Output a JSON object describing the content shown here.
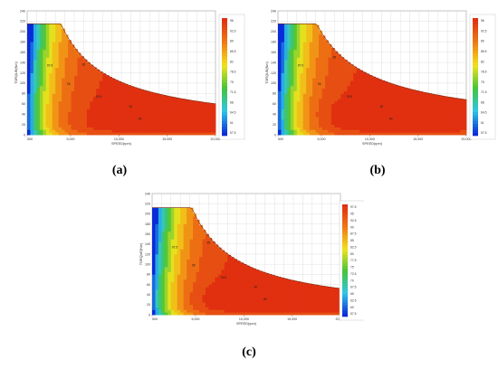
{
  "figure": {
    "panels": [
      {
        "caption": "(a)",
        "chart_data": {
          "type": "heatmap",
          "xlabel": "SPEED(rpm)",
          "ylabel": "TORQUE(Nm)",
          "xlim": [
            500,
            20000
          ],
          "ylim": [
            0,
            240
          ],
          "x_ticks": [
            "500",
            "5,000",
            "10,000",
            "15,000",
            "20,000"
          ],
          "y_ticks": [
            "0",
            "20",
            "40",
            "60",
            "80",
            "100",
            "120",
            "140",
            "160",
            "180",
            "200",
            "220",
            "240"
          ],
          "max_torque": 215,
          "corner_speed": 4000,
          "end_torque": 60,
          "colorbar_ticks": [
            "96",
            "92.5",
            "89",
            "85.5",
            "82",
            "78.5",
            "75",
            "71.5",
            "68",
            "64.5",
            "61",
            "57.5"
          ],
          "hotspot": {
            "x": 13500,
            "y": 32
          },
          "secondary_hotspot": {
            "x": 17500,
            "y": 30
          },
          "contour_labels": [
            "97.5",
            "95",
            "92.5",
            "90",
            "85",
            "80"
          ]
        }
      },
      {
        "caption": "(b)",
        "chart_data": {
          "type": "heatmap",
          "xlabel": "SPEED(rpm)",
          "ylabel": "TORQUE(Nm)",
          "xlim": [
            500,
            20000
          ],
          "ylim": [
            0,
            240
          ],
          "x_ticks": [
            "500",
            "5,000",
            "10,000",
            "15,000",
            "20,000"
          ],
          "y_ticks": [
            "0",
            "20",
            "40",
            "60",
            "80",
            "100",
            "120",
            "140",
            "160",
            "180",
            "200",
            "220",
            "240"
          ],
          "max_torque": 215,
          "corner_speed": 4500,
          "end_torque": 68,
          "colorbar_ticks": [
            "96",
            "92.5",
            "89",
            "85.5",
            "82",
            "78.5",
            "75",
            "71.5",
            "68",
            "64.5",
            "61",
            "57.5"
          ],
          "hotspot": {
            "x": 9500,
            "y": 40
          },
          "secondary_hotspot": {
            "x": 15500,
            "y": 35
          },
          "contour_labels": [
            "97.5",
            "95",
            "92.5",
            "90",
            "85",
            "80"
          ]
        }
      },
      {
        "caption": "(c)",
        "chart_data": {
          "type": "heatmap",
          "xlabel": "SPEED(rpm)",
          "ylabel": "TORQUE(Nm)",
          "xlim": [
            500,
            20000
          ],
          "ylim": [
            0,
            240
          ],
          "x_ticks": [
            "500",
            "5,000",
            "10,000",
            "15,000",
            "20,000"
          ],
          "y_ticks": [
            "0",
            "20",
            "40",
            "60",
            "80",
            "100",
            "120",
            "140",
            "160",
            "180",
            "200",
            "220",
            "240"
          ],
          "max_torque": 212,
          "corner_speed": 4600,
          "end_torque": 52,
          "colorbar_ticks": [
            "97.5",
            "95",
            "92.5",
            "90",
            "87.5",
            "85",
            "82.5",
            "80",
            "77.5",
            "75",
            "72.5",
            "70",
            "67.5",
            "65",
            "62.5",
            "60",
            "57.5"
          ],
          "hotspot": {
            "x": 9000,
            "y": 32
          },
          "secondary_hotspot": {
            "x": 16500,
            "y": 28
          },
          "contour_labels": [
            "97.5",
            "95",
            "92.5",
            "90",
            "85",
            "80"
          ]
        }
      }
    ],
    "colors": {
      "low": "#0a2bd8",
      "mid_low": "#2fc6e6",
      "mid": "#44c53a",
      "mid_high": "#f2e21c",
      "high": "#f07a14",
      "peak": "#e03010",
      "outside": "#ffffff",
      "grid": "#d8d8d8"
    }
  }
}
